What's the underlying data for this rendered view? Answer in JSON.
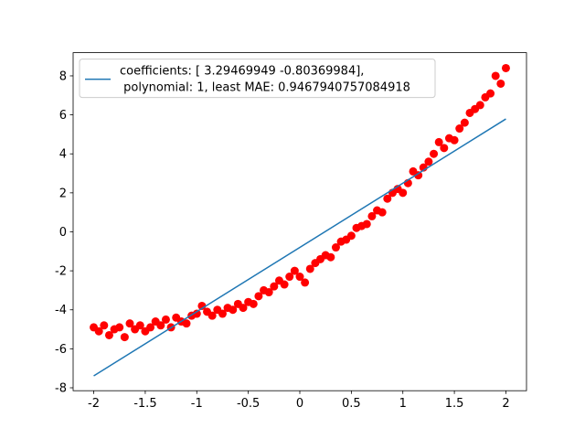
{
  "chart_data": {
    "type": "scatter",
    "xlim": [
      -2.2,
      2.2
    ],
    "ylim": [
      -8.15,
      9.19
    ],
    "xticks": [
      -2,
      -1.5,
      -1,
      -0.5,
      0,
      0.5,
      1,
      1.5,
      2
    ],
    "yticks": [
      -8,
      -6,
      -4,
      -2,
      0,
      2,
      4,
      6,
      8
    ],
    "legend": "upper left",
    "series": [
      {
        "type": "scatter",
        "color": "#ff0000",
        "x": [
          -2.0,
          -1.95,
          -1.9,
          -1.85,
          -1.8,
          -1.75,
          -1.7,
          -1.65,
          -1.6,
          -1.55,
          -1.5,
          -1.45,
          -1.4,
          -1.35,
          -1.3,
          -1.25,
          -1.2,
          -1.15,
          -1.1,
          -1.05,
          -1.0,
          -0.95,
          -0.9,
          -0.85,
          -0.8,
          -0.75,
          -0.7,
          -0.65,
          -0.6,
          -0.55,
          -0.5,
          -0.45,
          -0.4,
          -0.35,
          -0.3,
          -0.25,
          -0.2,
          -0.15,
          -0.1,
          -0.05,
          0.0,
          0.05,
          0.1,
          0.15,
          0.2,
          0.25,
          0.3,
          0.35,
          0.4,
          0.45,
          0.5,
          0.55,
          0.6,
          0.65,
          0.7,
          0.75,
          0.8,
          0.85,
          0.9,
          0.95,
          1.0,
          1.05,
          1.1,
          1.15,
          1.2,
          1.25,
          1.3,
          1.35,
          1.4,
          1.45,
          1.5,
          1.55,
          1.6,
          1.65,
          1.7,
          1.75,
          1.8,
          1.85,
          1.9,
          1.95,
          2.0
        ],
        "values": [
          -4.9,
          -5.1,
          -4.8,
          -5.3,
          -5.0,
          -4.9,
          -5.4,
          -4.7,
          -5.0,
          -4.8,
          -5.1,
          -4.9,
          -4.6,
          -4.8,
          -4.5,
          -4.9,
          -4.4,
          -4.6,
          -4.7,
          -4.3,
          -4.2,
          -3.8,
          -4.1,
          -4.3,
          -4.0,
          -4.2,
          -3.9,
          -4.0,
          -3.7,
          -3.9,
          -3.6,
          -3.7,
          -3.3,
          -3.0,
          -3.1,
          -2.8,
          -2.5,
          -2.7,
          -2.3,
          -2.0,
          -2.3,
          -2.6,
          -1.9,
          -1.6,
          -1.4,
          -1.2,
          -1.3,
          -0.8,
          -0.5,
          -0.4,
          -0.2,
          0.2,
          0.3,
          0.4,
          0.8,
          1.1,
          1.0,
          1.7,
          2.0,
          2.2,
          2.0,
          2.5,
          3.1,
          2.9,
          3.3,
          3.6,
          4.0,
          4.6,
          4.3,
          4.8,
          4.7,
          5.3,
          5.6,
          6.1,
          6.3,
          6.5,
          6.9,
          7.1,
          8.0,
          7.6,
          8.4
        ]
      },
      {
        "type": "line",
        "color": "#1f77b4",
        "name": "coefficients: [ 3.29469949 -0.80369984],\n polynomial: 1, least MAE: 0.9467940757084918",
        "x": [
          -2.0,
          2.0
        ],
        "values": [
          -7.39,
          5.79
        ]
      }
    ]
  }
}
